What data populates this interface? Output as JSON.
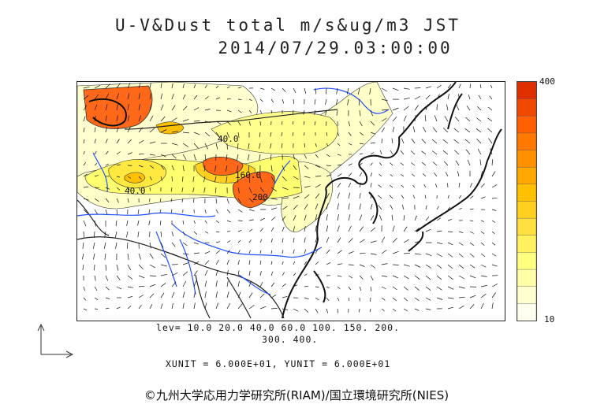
{
  "title": {
    "line1": "U-V&Dust total m/s&ug/m3 JST",
    "line2": "2014/07/29.03:00:00"
  },
  "colorbar": {
    "max_label": "400",
    "min_label": "10",
    "colors": [
      "#fffff0",
      "#ffffd0",
      "#ffffa8",
      "#ffff80",
      "#fff060",
      "#ffe040",
      "#ffd020",
      "#ffc000",
      "#ffa800",
      "#ff9000",
      "#ff7800",
      "#ff6000",
      "#f04800",
      "#e03000"
    ]
  },
  "contour_labels": [
    "40.0",
    "40.0",
    "160.0",
    "200"
  ],
  "levels": {
    "line1": "lev= 10.0 20.0 40.0 60.0 100. 150. 200.",
    "line2": "300. 400."
  },
  "units": {
    "text": "XUNIT = 6.000E+01, YUNIT = 6.000E+01"
  },
  "credit": "©九州大学応用力学研究所(RIAM)/国立環境研究所(NIES)",
  "icons": {
    "vector_legend": "axis-arrows-icon"
  }
}
